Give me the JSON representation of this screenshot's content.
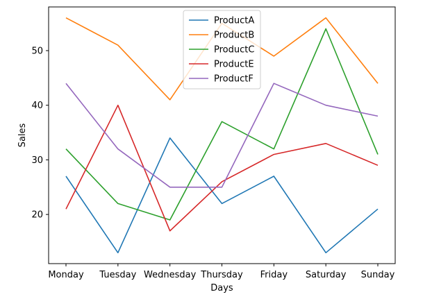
{
  "chart_data": {
    "type": "line",
    "title": "",
    "xlabel": "Days",
    "ylabel": "Sales",
    "x": [
      "Monday",
      "Tuesday",
      "Wednesday",
      "Thursday",
      "Friday",
      "Saturday",
      "Sunday"
    ],
    "ylim": [
      11,
      58
    ],
    "yticks": [
      20,
      30,
      40,
      50
    ],
    "grid": false,
    "legend": "top-center",
    "series": [
      {
        "name": "ProductA",
        "color": "#1f77b4",
        "values": [
          27,
          13,
          34,
          22,
          27,
          13,
          21
        ]
      },
      {
        "name": "ProductB",
        "color": "#ff7f0e",
        "values": [
          56,
          51,
          41,
          55,
          49,
          56,
          44
        ]
      },
      {
        "name": "ProductC",
        "color": "#2ca02c",
        "values": [
          32,
          22,
          19,
          37,
          32,
          54,
          31
        ]
      },
      {
        "name": "ProductE",
        "color": "#d62728",
        "values": [
          21,
          40,
          17,
          26,
          31,
          33,
          29
        ]
      },
      {
        "name": "ProductF",
        "color": "#9467bd",
        "values": [
          44,
          32,
          25,
          25,
          44,
          40,
          38
        ]
      }
    ]
  }
}
